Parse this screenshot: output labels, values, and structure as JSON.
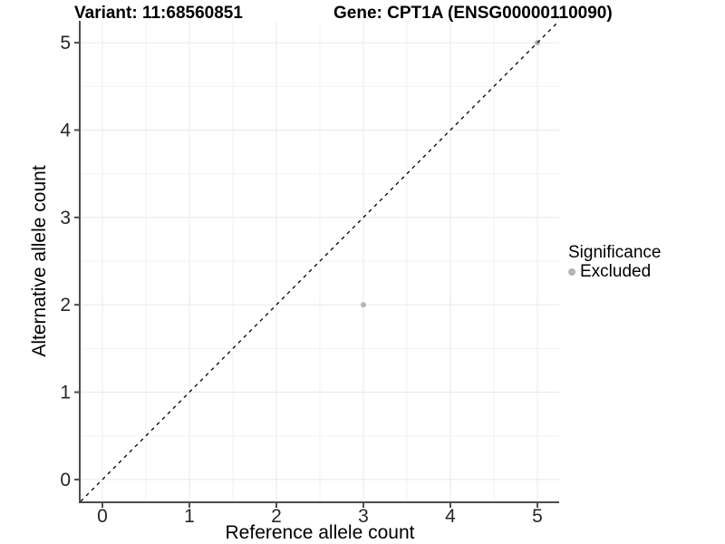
{
  "titles": {
    "variant": "Variant: 11:68560851",
    "gene": "Gene: CPT1A (ENSG00000110090)"
  },
  "chart_data": {
    "type": "scatter",
    "xlabel": "Reference allele count",
    "ylabel": "Alternative allele count",
    "xlim": [
      -0.25,
      5.25
    ],
    "ylim": [
      -0.25,
      5.25
    ],
    "xticks": [
      0,
      1,
      2,
      3,
      4,
      5
    ],
    "yticks": [
      0,
      1,
      2,
      3,
      4,
      5
    ],
    "minor_xticks": [
      0.5,
      1.5,
      2.5,
      3.5,
      4.5
    ],
    "minor_yticks": [
      0.5,
      1.5,
      2.5,
      3.5,
      4.5
    ],
    "grid": "major_and_minor",
    "points": [
      {
        "x": 3,
        "y": 2,
        "significance": "Excluded"
      },
      {
        "x": 5,
        "y": 5,
        "significance": "Excluded"
      }
    ],
    "reference_line": {
      "type": "identity",
      "style": "dashed",
      "color": "#000000"
    },
    "legend": {
      "title": "Significance",
      "position": "right",
      "entries": [
        {
          "label": "Excluded",
          "color": "#b5b5b5"
        }
      ]
    },
    "colors": {
      "point_excluded": "#b5b5b5",
      "grid_major": "#e8e8e8",
      "grid_minor": "#f2f2f2",
      "axis_line": "#4d4d4d",
      "tick_text": "#262626",
      "axis_title_text": "#000000"
    }
  }
}
